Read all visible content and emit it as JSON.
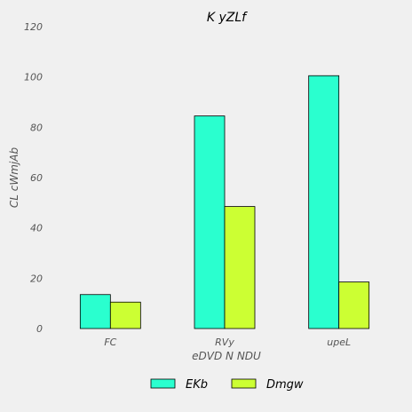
{
  "chart_data": {
    "type": "bar",
    "title": "K yZLf",
    "xlabel": "eDVD N NDU",
    "ylabel": "CL cWmjAb",
    "categories": [
      "FC",
      "RVy",
      "upeL"
    ],
    "series": [
      {
        "name": "EKb",
        "values": [
          13.5,
          84.5,
          100.5
        ],
        "color": "#2affcf"
      },
      {
        "name": "Dmgw",
        "values": [
          10.5,
          48.5,
          18.5
        ],
        "color": "#ccff33"
      }
    ],
    "ylim": [
      0,
      120
    ],
    "yticks": [
      0,
      20,
      40,
      60,
      80,
      100,
      120
    ],
    "grid": false,
    "legend_position": "bottom-center"
  }
}
